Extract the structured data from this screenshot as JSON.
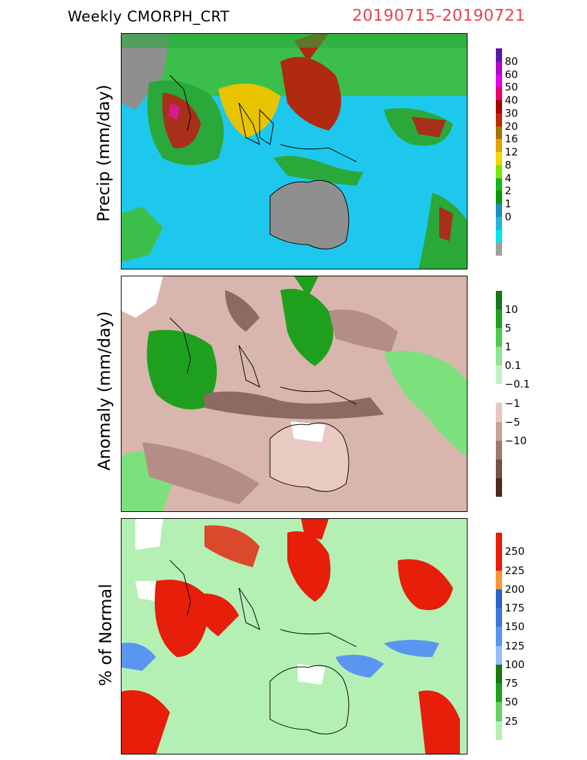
{
  "header": {
    "title": "Weekly CMORPH_CRT",
    "date_range": "20190715-20190721",
    "date_color": "#e8434f"
  },
  "panels": [
    {
      "id": "precip",
      "ylabel": "Precip (mm/day)",
      "colorbar": {
        "colors": [
          "#5b17a8",
          "#b00ac4",
          "#e600e6",
          "#e6006e",
          "#a70000",
          "#c02a00",
          "#a57300",
          "#e6a000",
          "#f0d800",
          "#7ce600",
          "#18b418",
          "#0a960a",
          "#1e8cbe",
          "#1eb4e6",
          "#00e6f0",
          "#a0a0a0"
        ],
        "labels": [
          "80",
          "60",
          "50",
          "40",
          "30",
          "20",
          "16",
          "12",
          "8",
          "4",
          "2",
          "1",
          "0"
        ]
      }
    },
    {
      "id": "anomaly",
      "ylabel": "Anomaly (mm/day)",
      "colorbar": {
        "colors": [
          "#147814",
          "#1ea01e",
          "#50c850",
          "#8ce68c",
          "#c8f0c8",
          "#ffffff",
          "#e6c8c0",
          "#c8a098",
          "#a07870",
          "#785048",
          "#502820"
        ],
        "labels": [
          "10",
          "5",
          "1",
          "0.1",
          "−0.1",
          "−1",
          "−5",
          "−10"
        ]
      }
    },
    {
      "id": "percent",
      "ylabel": "% of Normal",
      "colorbar": {
        "colors": [
          "#e61e0a",
          "#e61e0a",
          "#ff9632",
          "#2864c8",
          "#3c78dc",
          "#5a96f0",
          "#96beff",
          "#147814",
          "#1ea01e",
          "#64d264",
          "#b4f0b4"
        ],
        "labels": [
          "250",
          "225",
          "200",
          "175",
          "150",
          "125",
          "100",
          "75",
          "50",
          "25"
        ]
      }
    }
  ]
}
